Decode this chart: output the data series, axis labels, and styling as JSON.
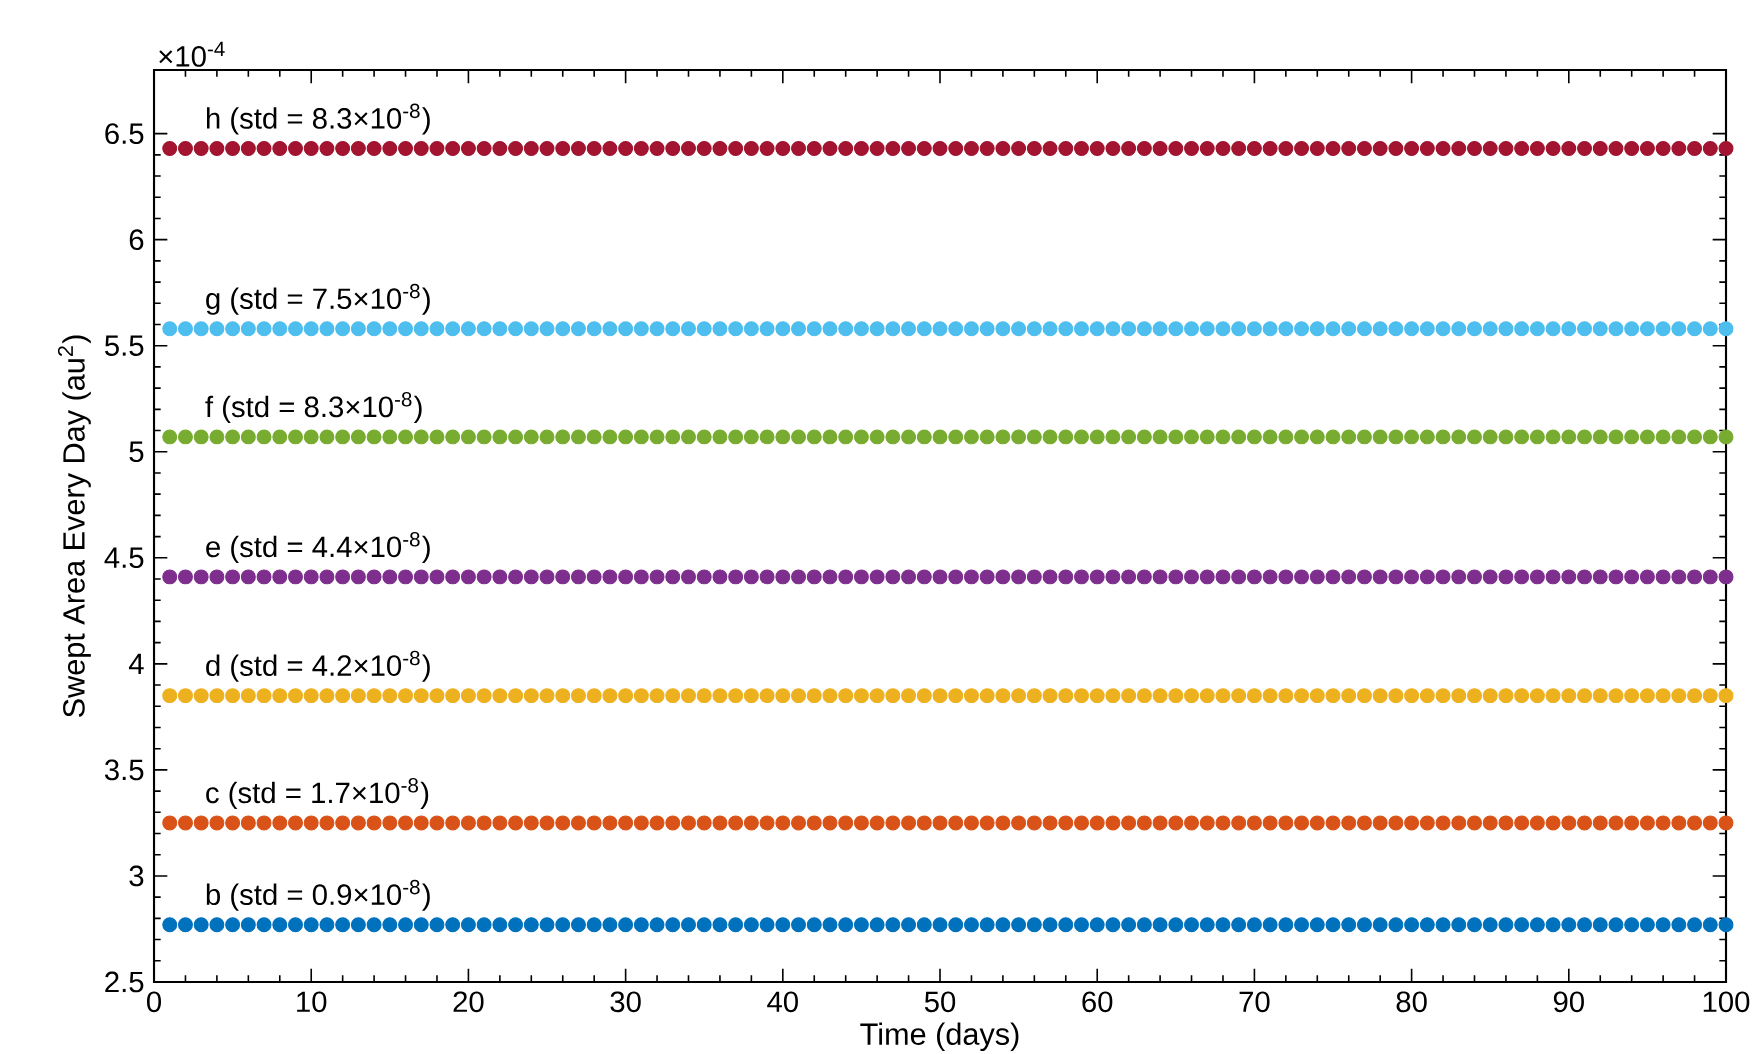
{
  "chart_data": {
    "type": "scatter",
    "xlabel": "Time (days)",
    "ylabel": "Swept Area Every Day (au$^{2}$)",
    "x": [
      1,
      2,
      3,
      4,
      5,
      6,
      7,
      8,
      9,
      10,
      11,
      12,
      13,
      14,
      15,
      16,
      17,
      18,
      19,
      20,
      21,
      22,
      23,
      24,
      25,
      26,
      27,
      28,
      29,
      30,
      31,
      32,
      33,
      34,
      35,
      36,
      37,
      38,
      39,
      40,
      41,
      42,
      43,
      44,
      45,
      46,
      47,
      48,
      49,
      50,
      51,
      52,
      53,
      54,
      55,
      56,
      57,
      58,
      59,
      60,
      61,
      62,
      63,
      64,
      65,
      66,
      67,
      68,
      69,
      70,
      71,
      72,
      73,
      74,
      75,
      76,
      77,
      78,
      79,
      80,
      81,
      82,
      83,
      84,
      85,
      86,
      87,
      88,
      89,
      90,
      91,
      92,
      93,
      94,
      95,
      96,
      97,
      98,
      99,
      100
    ],
    "series": [
      {
        "name": "b  (std = 0.9×10$^{-8}$)",
        "color": "#0072bd",
        "values": [
          2.77,
          2.77,
          2.77,
          2.77,
          2.77,
          2.77,
          2.77,
          2.77,
          2.77,
          2.77,
          2.77,
          2.77,
          2.77,
          2.77,
          2.77,
          2.77,
          2.77,
          2.77,
          2.77,
          2.77,
          2.77,
          2.77,
          2.77,
          2.77,
          2.77,
          2.77,
          2.77,
          2.77,
          2.77,
          2.77,
          2.77,
          2.77,
          2.77,
          2.77,
          2.77,
          2.77,
          2.77,
          2.77,
          2.77,
          2.77,
          2.77,
          2.77,
          2.77,
          2.77,
          2.77,
          2.77,
          2.77,
          2.77,
          2.77,
          2.77,
          2.77,
          2.77,
          2.77,
          2.77,
          2.77,
          2.77,
          2.77,
          2.77,
          2.77,
          2.77,
          2.77,
          2.77,
          2.77,
          2.77,
          2.77,
          2.77,
          2.77,
          2.77,
          2.77,
          2.77,
          2.77,
          2.77,
          2.77,
          2.77,
          2.77,
          2.77,
          2.77,
          2.77,
          2.77,
          2.77,
          2.77,
          2.77,
          2.77,
          2.77,
          2.77,
          2.77,
          2.77,
          2.77,
          2.77,
          2.77,
          2.77,
          2.77,
          2.77,
          2.77,
          2.77,
          2.77,
          2.77,
          2.77,
          2.77,
          2.77
        ]
      },
      {
        "name": "c  (std = 1.7×10$^{-8}$)",
        "color": "#d95319",
        "values": [
          3.25,
          3.25,
          3.25,
          3.25,
          3.25,
          3.25,
          3.25,
          3.25,
          3.25,
          3.25,
          3.25,
          3.25,
          3.25,
          3.25,
          3.25,
          3.25,
          3.25,
          3.25,
          3.25,
          3.25,
          3.25,
          3.25,
          3.25,
          3.25,
          3.25,
          3.25,
          3.25,
          3.25,
          3.25,
          3.25,
          3.25,
          3.25,
          3.25,
          3.25,
          3.25,
          3.25,
          3.25,
          3.25,
          3.25,
          3.25,
          3.25,
          3.25,
          3.25,
          3.25,
          3.25,
          3.25,
          3.25,
          3.25,
          3.25,
          3.25,
          3.25,
          3.25,
          3.25,
          3.25,
          3.25,
          3.25,
          3.25,
          3.25,
          3.25,
          3.25,
          3.25,
          3.25,
          3.25,
          3.25,
          3.25,
          3.25,
          3.25,
          3.25,
          3.25,
          3.25,
          3.25,
          3.25,
          3.25,
          3.25,
          3.25,
          3.25,
          3.25,
          3.25,
          3.25,
          3.25,
          3.25,
          3.25,
          3.25,
          3.25,
          3.25,
          3.25,
          3.25,
          3.25,
          3.25,
          3.25,
          3.25,
          3.25,
          3.25,
          3.25,
          3.25,
          3.25,
          3.25,
          3.25,
          3.25,
          3.25
        ]
      },
      {
        "name": "d  (std = 4.2×10$^{-8}$)",
        "color": "#edb120",
        "values": [
          3.85,
          3.85,
          3.85,
          3.85,
          3.85,
          3.85,
          3.85,
          3.85,
          3.85,
          3.85,
          3.85,
          3.85,
          3.85,
          3.85,
          3.85,
          3.85,
          3.85,
          3.85,
          3.85,
          3.85,
          3.85,
          3.85,
          3.85,
          3.85,
          3.85,
          3.85,
          3.85,
          3.85,
          3.85,
          3.85,
          3.85,
          3.85,
          3.85,
          3.85,
          3.85,
          3.85,
          3.85,
          3.85,
          3.85,
          3.85,
          3.85,
          3.85,
          3.85,
          3.85,
          3.85,
          3.85,
          3.85,
          3.85,
          3.85,
          3.85,
          3.85,
          3.85,
          3.85,
          3.85,
          3.85,
          3.85,
          3.85,
          3.85,
          3.85,
          3.85,
          3.85,
          3.85,
          3.85,
          3.85,
          3.85,
          3.85,
          3.85,
          3.85,
          3.85,
          3.85,
          3.85,
          3.85,
          3.85,
          3.85,
          3.85,
          3.85,
          3.85,
          3.85,
          3.85,
          3.85,
          3.85,
          3.85,
          3.85,
          3.85,
          3.85,
          3.85,
          3.85,
          3.85,
          3.85,
          3.85,
          3.85,
          3.85,
          3.85,
          3.85,
          3.85,
          3.85,
          3.85,
          3.85,
          3.85,
          3.85
        ]
      },
      {
        "name": "e  (std = 4.4×10$^{-8}$)",
        "color": "#7e2f8e",
        "values": [
          4.41,
          4.41,
          4.41,
          4.41,
          4.41,
          4.41,
          4.41,
          4.41,
          4.41,
          4.41,
          4.41,
          4.41,
          4.41,
          4.41,
          4.41,
          4.41,
          4.41,
          4.41,
          4.41,
          4.41,
          4.41,
          4.41,
          4.41,
          4.41,
          4.41,
          4.41,
          4.41,
          4.41,
          4.41,
          4.41,
          4.41,
          4.41,
          4.41,
          4.41,
          4.41,
          4.41,
          4.41,
          4.41,
          4.41,
          4.41,
          4.41,
          4.41,
          4.41,
          4.41,
          4.41,
          4.41,
          4.41,
          4.41,
          4.41,
          4.41,
          4.41,
          4.41,
          4.41,
          4.41,
          4.41,
          4.41,
          4.41,
          4.41,
          4.41,
          4.41,
          4.41,
          4.41,
          4.41,
          4.41,
          4.41,
          4.41,
          4.41,
          4.41,
          4.41,
          4.41,
          4.41,
          4.41,
          4.41,
          4.41,
          4.41,
          4.41,
          4.41,
          4.41,
          4.41,
          4.41,
          4.41,
          4.41,
          4.41,
          4.41,
          4.41,
          4.41,
          4.41,
          4.41,
          4.41,
          4.41,
          4.41,
          4.41,
          4.41,
          4.41,
          4.41,
          4.41,
          4.41,
          4.41,
          4.41,
          4.41
        ]
      },
      {
        "name": "f  (std = 8.3×10$^{-8}$)",
        "color": "#77ac30",
        "values": [
          5.07,
          5.07,
          5.07,
          5.07,
          5.07,
          5.07,
          5.07,
          5.07,
          5.07,
          5.07,
          5.07,
          5.07,
          5.07,
          5.07,
          5.07,
          5.07,
          5.07,
          5.07,
          5.07,
          5.07,
          5.07,
          5.07,
          5.07,
          5.07,
          5.07,
          5.07,
          5.07,
          5.07,
          5.07,
          5.07,
          5.07,
          5.07,
          5.07,
          5.07,
          5.07,
          5.07,
          5.07,
          5.07,
          5.07,
          5.07,
          5.07,
          5.07,
          5.07,
          5.07,
          5.07,
          5.07,
          5.07,
          5.07,
          5.07,
          5.07,
          5.07,
          5.07,
          5.07,
          5.07,
          5.07,
          5.07,
          5.07,
          5.07,
          5.07,
          5.07,
          5.07,
          5.07,
          5.07,
          5.07,
          5.07,
          5.07,
          5.07,
          5.07,
          5.07,
          5.07,
          5.07,
          5.07,
          5.07,
          5.07,
          5.07,
          5.07,
          5.07,
          5.07,
          5.07,
          5.07,
          5.07,
          5.07,
          5.07,
          5.07,
          5.07,
          5.07,
          5.07,
          5.07,
          5.07,
          5.07,
          5.07,
          5.07,
          5.07,
          5.07,
          5.07,
          5.07,
          5.07,
          5.07,
          5.07,
          5.07
        ]
      },
      {
        "name": "g  (std = 7.5×10$^{-8}$)",
        "color": "#4dbeee",
        "values": [
          5.58,
          5.58,
          5.58,
          5.58,
          5.58,
          5.58,
          5.58,
          5.58,
          5.58,
          5.58,
          5.58,
          5.58,
          5.58,
          5.58,
          5.58,
          5.58,
          5.58,
          5.58,
          5.58,
          5.58,
          5.58,
          5.58,
          5.58,
          5.58,
          5.58,
          5.58,
          5.58,
          5.58,
          5.58,
          5.58,
          5.58,
          5.58,
          5.58,
          5.58,
          5.58,
          5.58,
          5.58,
          5.58,
          5.58,
          5.58,
          5.58,
          5.58,
          5.58,
          5.58,
          5.58,
          5.58,
          5.58,
          5.58,
          5.58,
          5.58,
          5.58,
          5.58,
          5.58,
          5.58,
          5.58,
          5.58,
          5.58,
          5.58,
          5.58,
          5.58,
          5.58,
          5.58,
          5.58,
          5.58,
          5.58,
          5.58,
          5.58,
          5.58,
          5.58,
          5.58,
          5.58,
          5.58,
          5.58,
          5.58,
          5.58,
          5.58,
          5.58,
          5.58,
          5.58,
          5.58,
          5.58,
          5.58,
          5.58,
          5.58,
          5.58,
          5.58,
          5.58,
          5.58,
          5.58,
          5.58,
          5.58,
          5.58,
          5.58,
          5.58,
          5.58,
          5.58,
          5.58,
          5.58,
          5.58,
          5.58
        ]
      },
      {
        "name": "h  (std = 8.3×10$^{-8}$)",
        "color": "#a2142f",
        "values": [
          6.43,
          6.43,
          6.43,
          6.43,
          6.43,
          6.43,
          6.43,
          6.43,
          6.43,
          6.43,
          6.43,
          6.43,
          6.43,
          6.43,
          6.43,
          6.43,
          6.43,
          6.43,
          6.43,
          6.43,
          6.43,
          6.43,
          6.43,
          6.43,
          6.43,
          6.43,
          6.43,
          6.43,
          6.43,
          6.43,
          6.43,
          6.43,
          6.43,
          6.43,
          6.43,
          6.43,
          6.43,
          6.43,
          6.43,
          6.43,
          6.43,
          6.43,
          6.43,
          6.43,
          6.43,
          6.43,
          6.43,
          6.43,
          6.43,
          6.43,
          6.43,
          6.43,
          6.43,
          6.43,
          6.43,
          6.43,
          6.43,
          6.43,
          6.43,
          6.43,
          6.43,
          6.43,
          6.43,
          6.43,
          6.43,
          6.43,
          6.43,
          6.43,
          6.43,
          6.43,
          6.43,
          6.43,
          6.43,
          6.43,
          6.43,
          6.43,
          6.43,
          6.43,
          6.43,
          6.43,
          6.43,
          6.43,
          6.43,
          6.43,
          6.43,
          6.43,
          6.43,
          6.43,
          6.43,
          6.43,
          6.43,
          6.43,
          6.43,
          6.43,
          6.43,
          6.43,
          6.43,
          6.43,
          6.43,
          6.43
        ]
      }
    ],
    "annotations": [
      "×10$^{-4}$"
    ],
    "xlim": [
      0,
      100
    ],
    "xticks": [
      0,
      10,
      20,
      30,
      40,
      50,
      60,
      70,
      80,
      90,
      100
    ],
    "ylim": [
      2.5,
      6.8
    ],
    "yticks": [
      2.5,
      3,
      3.5,
      4,
      4.5,
      5,
      5.5,
      6,
      6.5
    ],
    "marker": "circle"
  }
}
